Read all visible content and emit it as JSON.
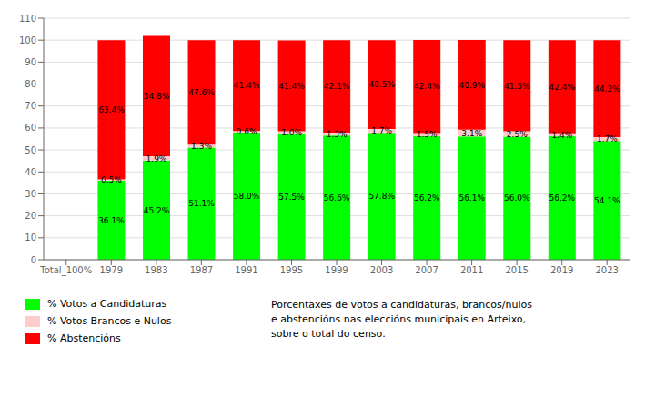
{
  "chart_data": {
    "type": "bar",
    "stacked": true,
    "data_labels": true,
    "grid": true,
    "legend": "bottom",
    "categories": [
      "Total_100%",
      "1979",
      "1983",
      "1987",
      "1991",
      "1995",
      "1999",
      "2003",
      "2007",
      "2011",
      "2015",
      "2019",
      "2023"
    ],
    "series": [
      {
        "name": "% Votos a Candidaturas",
        "color": "#00ff00",
        "values": [
          0,
          36.1,
          45.2,
          51.1,
          58.0,
          57.5,
          56.6,
          57.8,
          56.2,
          56.1,
          56.0,
          56.2,
          54.1
        ],
        "value_labels": [
          null,
          "36.1%",
          "45.2%",
          "51.1%",
          "58.0%",
          "57.5%",
          "56.6%",
          "57.8%",
          "56.2%",
          "56.1%",
          "56.0%",
          "56.2%",
          "54.1%"
        ]
      },
      {
        "name": "% Votos Brancos e Nulos",
        "color": "#ffcccc",
        "values": [
          0,
          0.5,
          1.9,
          1.3,
          0.6,
          1.0,
          1.3,
          1.7,
          1.5,
          3.1,
          2.5,
          1.4,
          1.7
        ],
        "value_labels": [
          null,
          "0.5%",
          "1.9%",
          "1.3%",
          "0.6%",
          "1.0%",
          "1.3%",
          "1.7%",
          "1.5%",
          "3.1%",
          "2.5%",
          "1.4%",
          "1.7%"
        ]
      },
      {
        "name": "% Abstencións",
        "color": "#ff0000",
        "values": [
          0,
          63.4,
          54.8,
          47.6,
          41.4,
          41.4,
          42.1,
          40.5,
          42.4,
          40.9,
          41.5,
          42.4,
          44.2
        ],
        "value_labels": [
          null,
          "63.4%",
          "54.8%",
          "47.6%",
          "41.4%",
          "41.4%",
          "42.1%",
          "40.5%",
          "42.4%",
          "40.9%",
          "41.5%",
          "42.4%",
          "44.2%"
        ]
      }
    ],
    "ylim": [
      0,
      110
    ],
    "yticks": [
      0,
      10,
      20,
      30,
      40,
      50,
      60,
      70,
      80,
      90,
      100,
      110
    ],
    "annotations": [
      "Porcentaxes de votos a candidaturas, brancos/nulos\ne abstencións nas eleccións municipais en Arteixo,\nsobre o total do censo."
    ]
  }
}
